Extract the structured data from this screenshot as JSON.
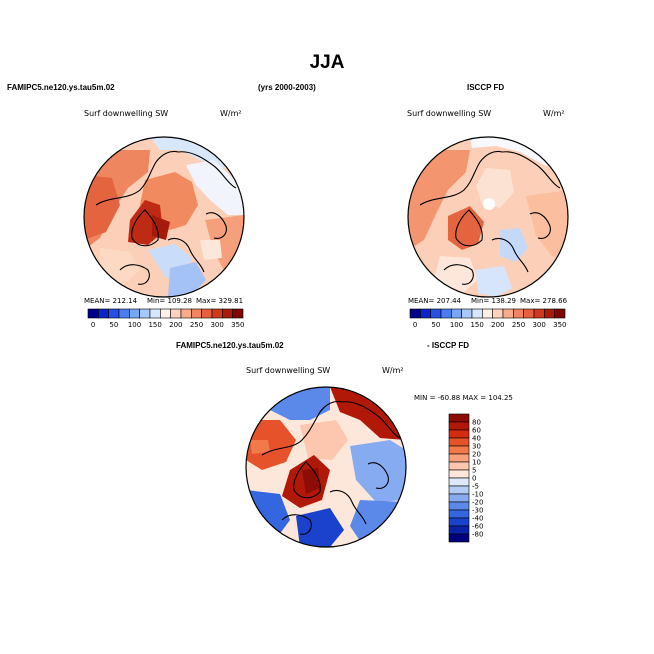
{
  "figure": {
    "season": "JJA",
    "period": "(yrs 2000-2003)",
    "model_case": "FAMIPC5.ne120.ys.tau5m.02",
    "obs_case": "ISCCP FD",
    "diff_obs_label": "- ISCCP FD",
    "variable": "Surf downwelling SW",
    "units": "W/m²"
  },
  "panels": {
    "model": {
      "mean": "MEAN= 212.14",
      "min": "Min= 109.28",
      "max": "Max= 329.81"
    },
    "obs": {
      "mean": "MEAN= 207.44",
      "min": "Min= 138.29",
      "max": "Max= 278.66"
    },
    "diff": {
      "minmax": "MIN = -60.88 MAX = 104.25"
    }
  },
  "chart_data": [
    {
      "type": "heatmap",
      "projection": "north-polar-stereographic",
      "panel": "model",
      "title": "FAMIPC5.ne120.ys.tau5m.02",
      "variable": "Surf downwelling SW",
      "units": "W/m²",
      "stats": {
        "mean": 212.14,
        "min": 109.28,
        "max": 329.81
      },
      "colorbar": {
        "levels": [
          0,
          25,
          50,
          75,
          100,
          125,
          150,
          175,
          200,
          225,
          250,
          275,
          300,
          325,
          350
        ],
        "tick_labels": [
          "0",
          "50",
          "100",
          "150",
          "200",
          "250",
          "300",
          "350"
        ],
        "colors": [
          "#00008b",
          "#0b24c8",
          "#2450e6",
          "#4a7ef0",
          "#7aa6f6",
          "#a9c8fa",
          "#d6e6fd",
          "#fff0e6",
          "#fdd3bd",
          "#f9ac8d",
          "#f2845f",
          "#e6603d",
          "#cf3a1e",
          "#a91a0b",
          "#7f0505"
        ]
      }
    },
    {
      "type": "heatmap",
      "projection": "north-polar-stereographic",
      "panel": "obs",
      "title": "ISCCP FD",
      "variable": "Surf downwelling SW",
      "units": "W/m²",
      "stats": {
        "mean": 207.44,
        "min": 138.29,
        "max": 278.66
      },
      "colorbar": {
        "levels": [
          0,
          25,
          50,
          75,
          100,
          125,
          150,
          175,
          200,
          225,
          250,
          275,
          300,
          325,
          350
        ],
        "tick_labels": [
          "0",
          "50",
          "100",
          "150",
          "200",
          "250",
          "300",
          "350"
        ],
        "colors": [
          "#00008b",
          "#0b24c8",
          "#2450e6",
          "#4a7ef0",
          "#7aa6f6",
          "#a9c8fa",
          "#d6e6fd",
          "#fff0e6",
          "#fdd3bd",
          "#f9ac8d",
          "#f2845f",
          "#e6603d",
          "#cf3a1e",
          "#a91a0b",
          "#7f0505"
        ]
      }
    },
    {
      "type": "heatmap",
      "projection": "north-polar-stereographic",
      "panel": "difference",
      "title": "FAMIPC5.ne120.ys.tau5m.02 - ISCCP FD",
      "variable": "Surf downwelling SW",
      "units": "W/m²",
      "stats": {
        "min": -60.88,
        "max": 104.25
      },
      "colorbar": {
        "levels": [
          80,
          60,
          40,
          30,
          20,
          10,
          5,
          0,
          -5,
          -10,
          -20,
          -30,
          -40,
          -60,
          -80
        ],
        "tick_labels": [
          "80",
          "60",
          "40",
          "30",
          "20",
          "10",
          "5",
          "0",
          "-5",
          "-10",
          "-20",
          "-30",
          "-40",
          "-60",
          "-80"
        ],
        "colors": [
          "#8b0d05",
          "#b21808",
          "#d32c10",
          "#e6532a",
          "#f2794a",
          "#f9a17a",
          "#fcc7ae",
          "#fde6da",
          "#dde9fb",
          "#b3ccf6",
          "#87abf0",
          "#5b89ea",
          "#3466e0",
          "#1a42cc",
          "#0a22a8",
          "#00007f"
        ]
      }
    }
  ]
}
